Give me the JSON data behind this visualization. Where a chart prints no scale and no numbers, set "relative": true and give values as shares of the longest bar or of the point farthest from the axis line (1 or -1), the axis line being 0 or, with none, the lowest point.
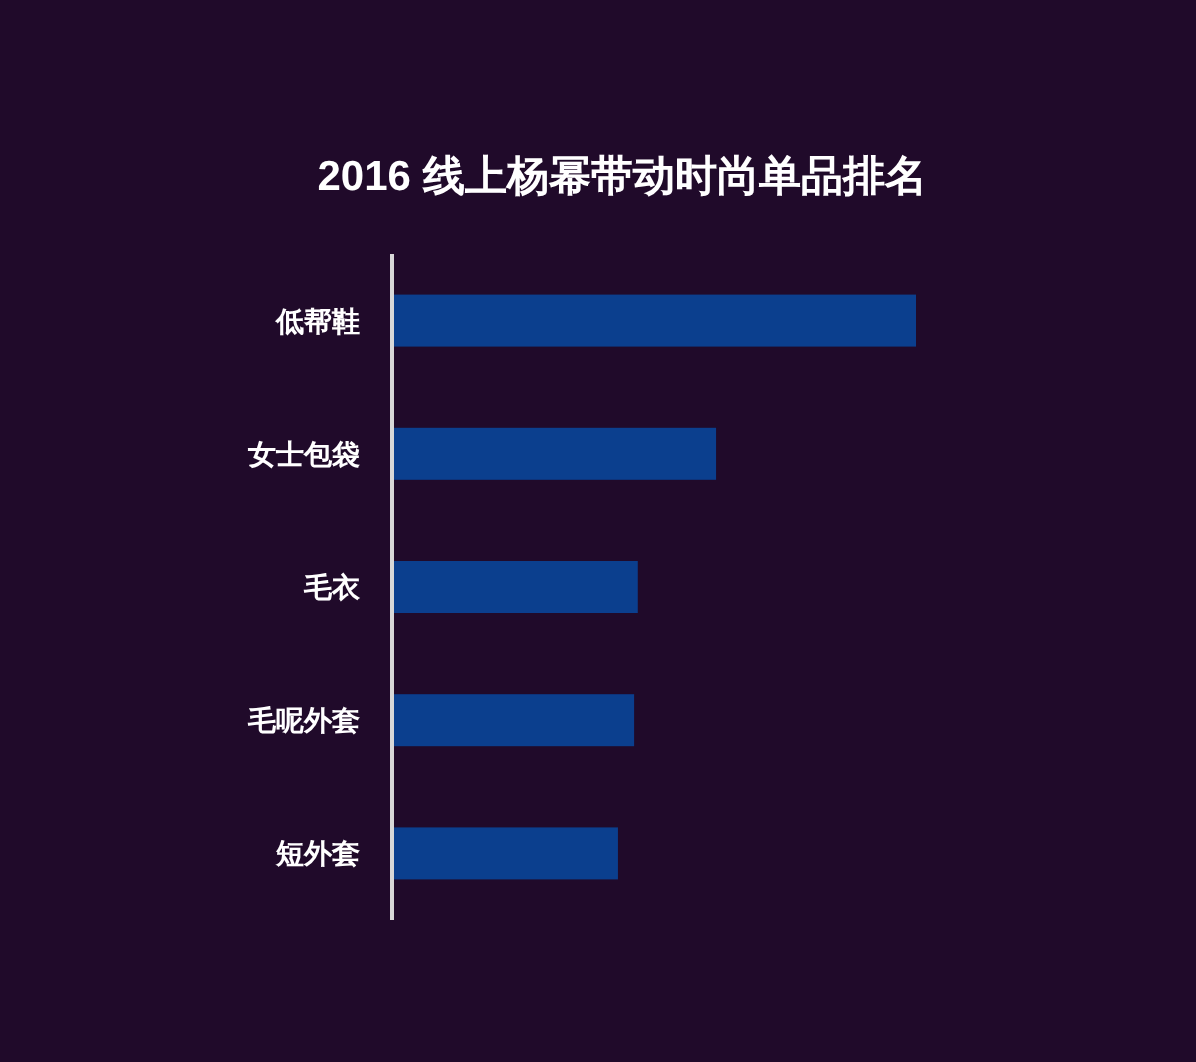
{
  "chart_data": {
    "type": "bar",
    "orientation": "horizontal",
    "relative": true,
    "title": "2016 线上杨幂带动时尚单品排名",
    "categories": [
      "低帮鞋",
      "女士包袋",
      "毛衣",
      "毛呢外套",
      "短外套"
    ],
    "values": [
      1,
      0.617,
      0.467,
      0.46,
      0.429
    ],
    "color": "#0b3f8e"
  }
}
